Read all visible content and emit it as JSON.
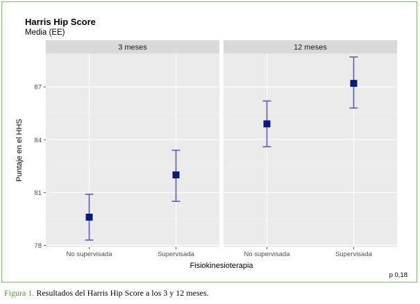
{
  "chart_data": {
    "type": "scatter",
    "title": "Harris Hip Score",
    "subtitle": "Media (EE)",
    "xlabel": "Fisiokinesioterapia",
    "ylabel": "Puntaje en el HHS",
    "categories": [
      "No supervisada",
      "Supervisada"
    ],
    "ylim": [
      77.9,
      88.9
    ],
    "yticks": [
      78,
      81,
      84,
      87
    ],
    "grid": true,
    "colors": {
      "point": "#0a1a7a",
      "errorbar": "#5d5ca8",
      "panel": "#ebebeb",
      "strip": "#d9d9d9",
      "grid_major": "#ffffff"
    },
    "panels": [
      {
        "label": "3 meses",
        "points": [
          {
            "category": "No supervisada",
            "mean": 79.6,
            "lower": 78.3,
            "upper": 80.9
          },
          {
            "category": "Supervisada",
            "mean": 82.0,
            "lower": 80.5,
            "upper": 83.4
          }
        ]
      },
      {
        "label": "12 meses",
        "points": [
          {
            "category": "No supervisada",
            "mean": 84.9,
            "lower": 83.6,
            "upper": 86.2
          },
          {
            "category": "Supervisada",
            "mean": 87.2,
            "lower": 85.8,
            "upper": 88.7
          }
        ]
      }
    ],
    "annotation": "p 0,18"
  },
  "caption": {
    "label": "Figura 1.",
    "text": " Resultados del Harris Hip Score a los 3 y 12 meses."
  }
}
